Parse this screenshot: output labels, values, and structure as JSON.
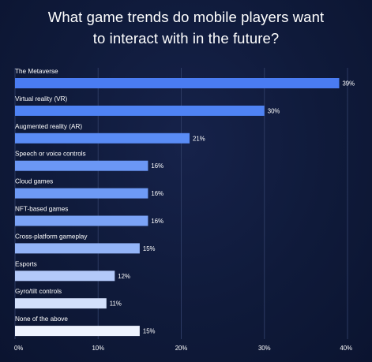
{
  "chart_data": {
    "type": "bar",
    "orientation": "horizontal",
    "title_lines": [
      "What game trends do mobile players want",
      "to interact with in the future?"
    ],
    "categories": [
      "The Metaverse",
      "Virtual reality (VR)",
      "Augmented reality (AR)",
      "Speech or voice controls",
      "Cloud games",
      "NFT-based games",
      "Cross-platform gameplay",
      "Esports",
      "Gyro/tilt controls",
      "None of the above"
    ],
    "values": [
      39,
      30,
      21,
      16,
      16,
      16,
      15,
      12,
      11,
      15
    ],
    "value_labels": [
      "39%",
      "30%",
      "21%",
      "16%",
      "16%",
      "16%",
      "15%",
      "12%",
      "11%",
      "15%"
    ],
    "bar_colors": [
      "#4a7cf2",
      "#4f83f4",
      "#5a8cf5",
      "#6b97f5",
      "#6e9af5",
      "#7ba3f6",
      "#93b4f7",
      "#b3c9f9",
      "#d3e0fb",
      "#eef3fe"
    ],
    "xlim": [
      0,
      40
    ],
    "x_ticks": [
      0,
      10,
      20,
      30,
      40
    ],
    "x_tick_labels": [
      "0%",
      "10%",
      "20%",
      "30%",
      "40%"
    ],
    "grid": "vertical",
    "legend": "none"
  }
}
